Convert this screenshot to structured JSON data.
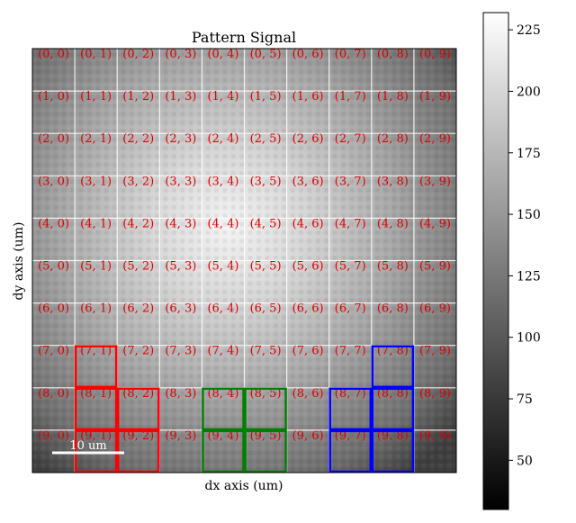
{
  "title": "Pattern Signal",
  "xlabel": "dx axis (um)",
  "ylabel": "dy axis (um)",
  "scalebar_label": "10 um",
  "colorbar": {
    "ticks": [
      "50",
      "75",
      "100",
      "125",
      "150",
      "175",
      "200",
      "225"
    ],
    "tick_values": [
      50,
      75,
      100,
      125,
      150,
      175,
      200,
      225
    ],
    "vmin": 30,
    "vmax": 232
  },
  "grid": {
    "rows": 10,
    "cols": 10,
    "label_color": "#e00000",
    "labels": [
      [
        "(0, 0)",
        "(0, 1)",
        "(0, 2)",
        "(0, 3)",
        "(0, 4)",
        "(0, 5)",
        "(0, 6)",
        "(0, 7)",
        "(0, 8)",
        "(0, 9)"
      ],
      [
        "(1, 0)",
        "(1, 1)",
        "(1, 2)",
        "(1, 3)",
        "(1, 4)",
        "(1, 5)",
        "(1, 6)",
        "(1, 7)",
        "(1, 8)",
        "(1, 9)"
      ],
      [
        "(2, 0)",
        "(2, 1)",
        "(2, 2)",
        "(2, 3)",
        "(2, 4)",
        "(2, 5)",
        "(2, 6)",
        "(2, 7)",
        "(2, 8)",
        "(2, 9)"
      ],
      [
        "(3, 0)",
        "(3, 1)",
        "(3, 2)",
        "(3, 3)",
        "(3, 4)",
        "(3, 5)",
        "(3, 6)",
        "(3, 7)",
        "(3, 8)",
        "(3, 9)"
      ],
      [
        "(4, 0)",
        "(4, 1)",
        "(4, 2)",
        "(4, 3)",
        "(4, 4)",
        "(4, 5)",
        "(4, 6)",
        "(4, 7)",
        "(4, 8)",
        "(4, 9)"
      ],
      [
        "(5, 0)",
        "(5, 1)",
        "(5, 2)",
        "(5, 3)",
        "(5, 4)",
        "(5, 5)",
        "(5, 6)",
        "(5, 7)",
        "(5, 8)",
        "(5, 9)"
      ],
      [
        "(6, 0)",
        "(6, 1)",
        "(6, 2)",
        "(6, 3)",
        "(6, 4)",
        "(6, 5)",
        "(6, 6)",
        "(6, 7)",
        "(6, 8)",
        "(6, 9)"
      ],
      [
        "(7, 0)",
        "(7, 1)",
        "(7, 2)",
        "(7, 3)",
        "(7, 4)",
        "(7, 5)",
        "(7, 6)",
        "(7, 7)",
        "(7, 8)",
        "(7, 9)"
      ],
      [
        "(8, 0)",
        "(8, 1)",
        "(8, 2)",
        "(8, 3)",
        "(8, 4)",
        "(8, 5)",
        "(8, 6)",
        "(8, 7)",
        "(8, 8)",
        "(8, 9)"
      ],
      [
        "(9, 0)",
        "(9, 1)",
        "(9, 2)",
        "(9, 3)",
        "(9, 4)",
        "(9, 5)",
        "(9, 6)",
        "(9, 7)",
        "(9, 8)",
        "(9, 9)"
      ]
    ]
  },
  "highlights": [
    {
      "color": "#ff0000",
      "cells": [
        [
          7,
          1
        ],
        [
          8,
          1
        ],
        [
          8,
          2
        ],
        [
          9,
          1
        ],
        [
          9,
          2
        ]
      ]
    },
    {
      "color": "#008000",
      "cells": [
        [
          8,
          4
        ],
        [
          8,
          5
        ],
        [
          9,
          4
        ],
        [
          9,
          5
        ]
      ]
    },
    {
      "color": "#0000ff",
      "cells": [
        [
          7,
          8
        ],
        [
          8,
          7
        ],
        [
          8,
          8
        ],
        [
          9,
          7
        ],
        [
          9,
          8
        ]
      ]
    }
  ]
}
